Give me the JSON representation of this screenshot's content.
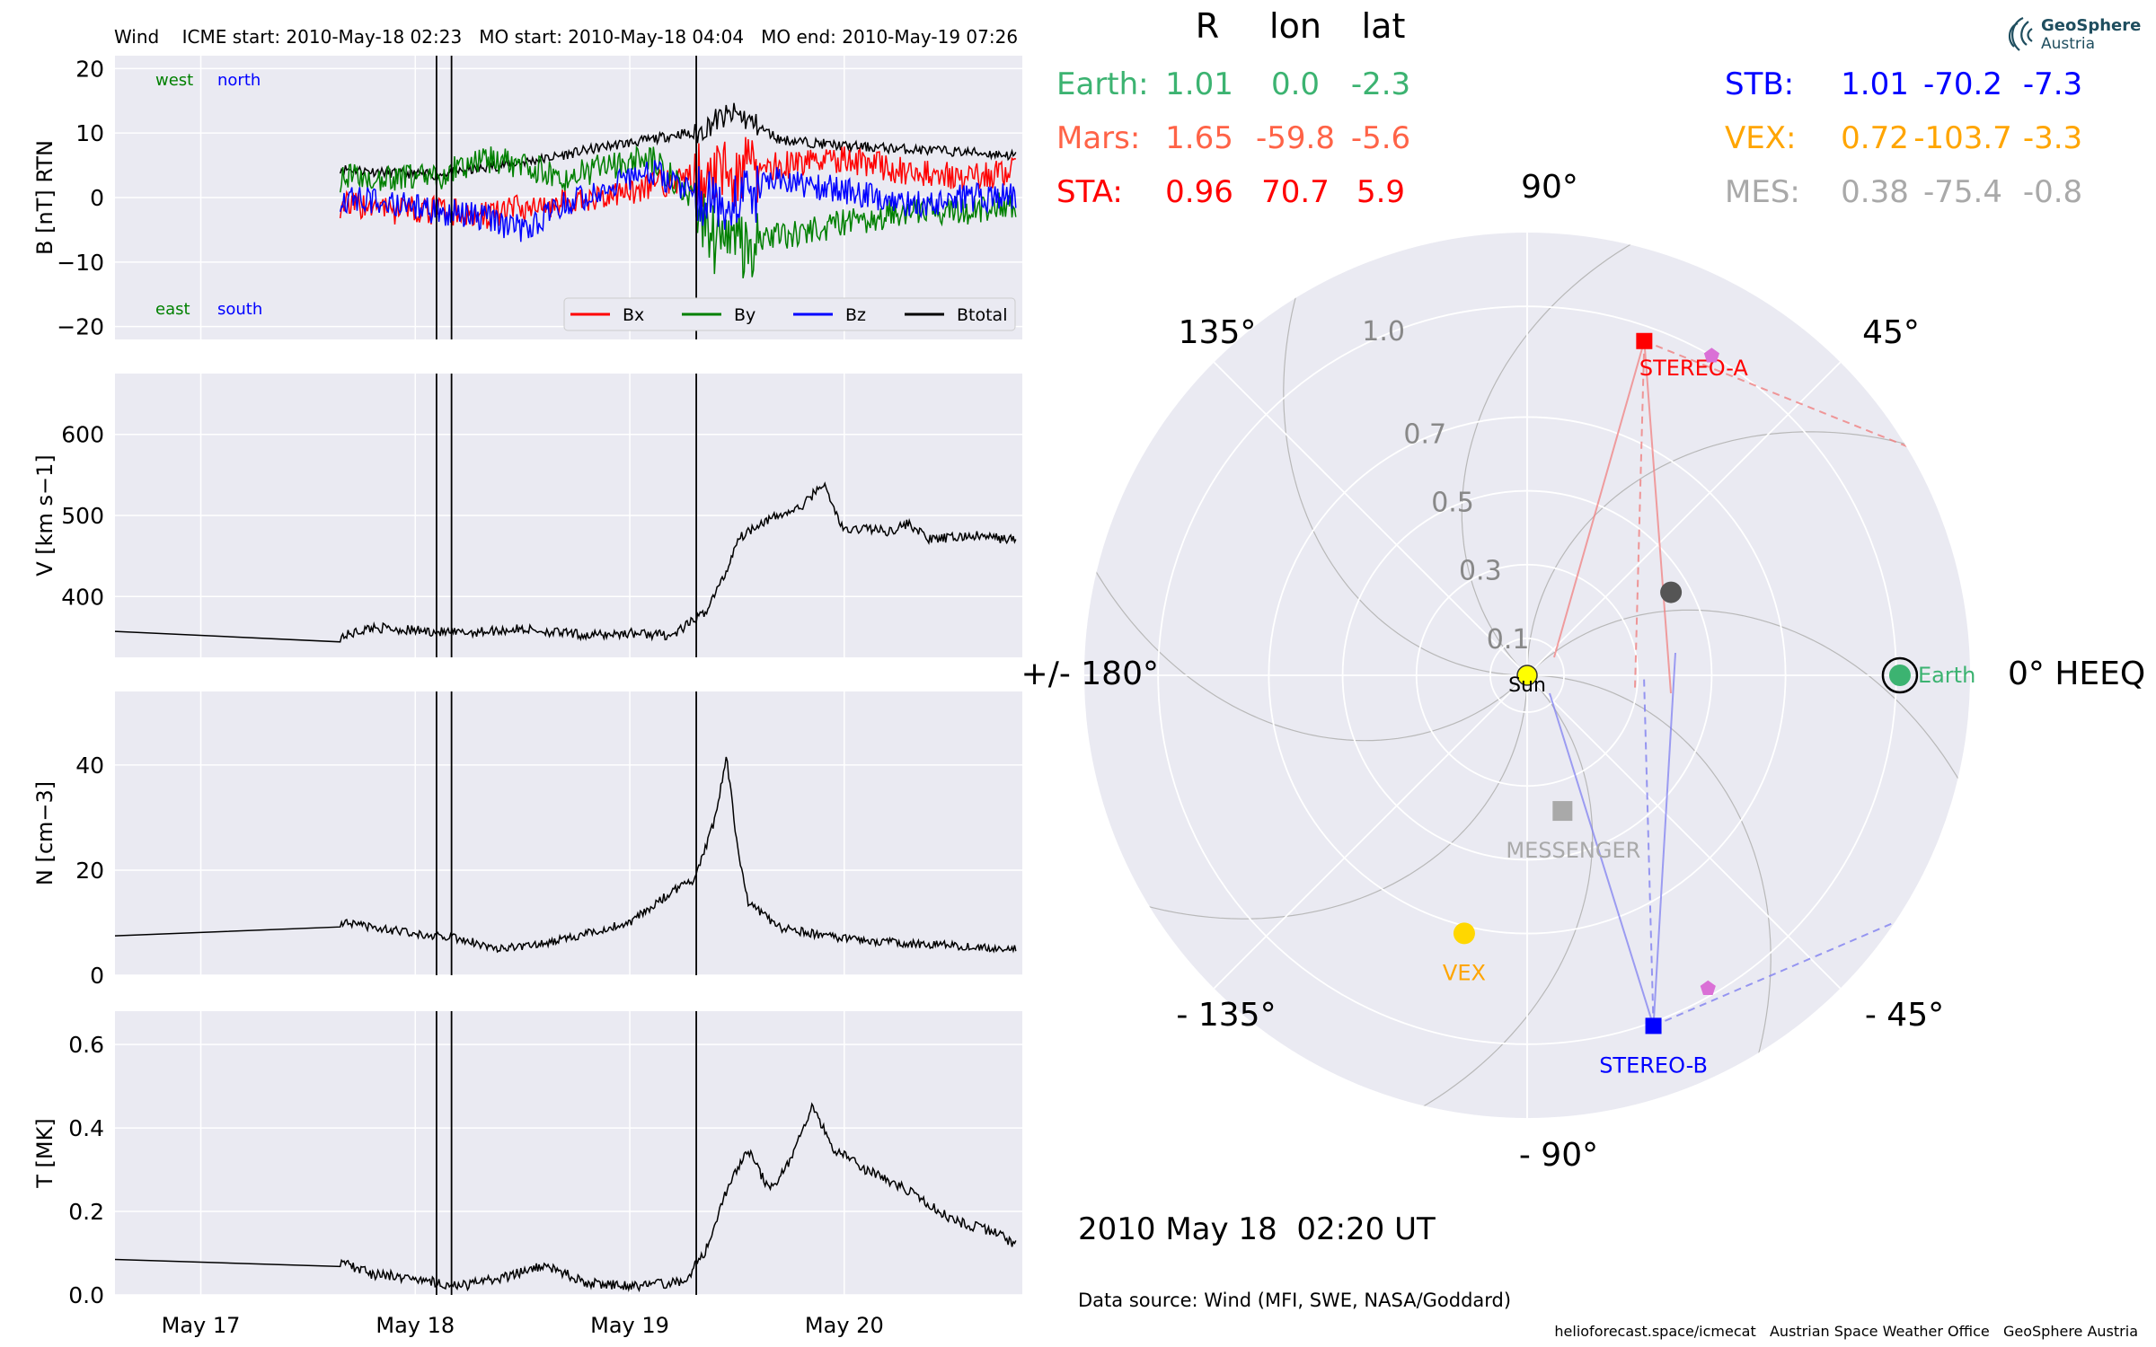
{
  "header": {
    "title": "Wind    ICME start: 2010-May-18 02:23   MO start: 2010-May-18 04:04   MO end: 2010-May-19 07:26"
  },
  "logo": {
    "line1": "GeoSphere",
    "line2": "Austria"
  },
  "footer": {
    "timestamp": "2010 May 18  02:20 UT",
    "data_source": "Data source: Wind (MFI, SWE, NASA/Goddard)",
    "credits": "helioforecast.space/icmecat   Austrian Space Weather Office   GeoSphere Austria"
  },
  "colors": {
    "panel_bg": "#eaeaf2",
    "grid": "#ffffff",
    "Bx": "#ff0000",
    "By": "#008000",
    "Bz": "#0000ff",
    "Btotal": "#000000",
    "earth": "#3cb371",
    "mars": "#ff6347",
    "sta": "#ff0000",
    "stb": "#0000ff",
    "vex": "#ffa500",
    "mes": "#a9a9a9",
    "sun": "#ffff00"
  },
  "chart_data": [
    {
      "type": "line",
      "title": "",
      "ylabel": "B [nT] RTN",
      "ylim": [
        -22,
        22
      ],
      "yticks": [
        -20,
        -10,
        0,
        10,
        20
      ],
      "ytick_labels": [
        "−20",
        "−10",
        "0",
        "10",
        "20"
      ],
      "xlim_days": [
        16.6,
        20.83
      ],
      "xticks": [
        17,
        18,
        19,
        20
      ],
      "xtick_labels": [
        "May 17",
        "May 18",
        "May 19",
        "May 20"
      ],
      "annotations": [
        "west",
        "north",
        "east",
        "south"
      ],
      "legend": [
        "Bx",
        "By",
        "Bz",
        "Btotal"
      ],
      "legend_position": "lower-right",
      "event_lines_days": [
        18.099,
        18.169,
        19.31
      ],
      "series": [
        {
          "name": "Btotal",
          "x": [
            17.65,
            17.9,
            18.1,
            18.3,
            18.6,
            18.9,
            19.1,
            19.25,
            19.3,
            19.4,
            19.5,
            19.7,
            20.0,
            20.3,
            20.6,
            20.8
          ],
          "y": [
            4.5,
            3.8,
            3.5,
            4.5,
            6.0,
            8.0,
            9.0,
            10.0,
            9.5,
            12.0,
            13.0,
            9.0,
            8.0,
            7.5,
            7.0,
            6.5
          ]
        },
        {
          "name": "Bx",
          "x": [
            17.65,
            17.9,
            18.1,
            18.3,
            18.6,
            18.9,
            19.1,
            19.3,
            19.5,
            19.7,
            20.0,
            20.3,
            20.6,
            20.8
          ],
          "y": [
            -1,
            -2,
            -2,
            -3,
            -1,
            0,
            2,
            3,
            4,
            5,
            6,
            4,
            3,
            4
          ]
        },
        {
          "name": "By",
          "x": [
            17.65,
            17.9,
            18.1,
            18.3,
            18.5,
            18.7,
            18.9,
            19.1,
            19.3,
            19.4,
            19.5,
            19.7,
            20.0,
            20.3,
            20.6,
            20.8
          ],
          "y": [
            3,
            3,
            3,
            6,
            5,
            3,
            5,
            6,
            0,
            -7,
            -8,
            -6,
            -4,
            -2,
            -2,
            -1
          ]
        },
        {
          "name": "Bz",
          "x": [
            17.65,
            17.9,
            18.1,
            18.3,
            18.5,
            18.7,
            18.9,
            19.1,
            19.3,
            19.5,
            19.7,
            20.0,
            20.3,
            20.6,
            20.8
          ],
          "y": [
            0,
            -1,
            -2,
            -3,
            -5,
            -1,
            2,
            4,
            1,
            0,
            3,
            1,
            -1,
            0,
            0
          ]
        }
      ]
    },
    {
      "type": "line",
      "ylabel": "V [km s−1]",
      "ylim": [
        325,
        675
      ],
      "yticks": [
        400,
        500,
        600
      ],
      "ytick_labels": [
        "400",
        "500",
        "600"
      ],
      "xlim_days": [
        16.6,
        20.83
      ],
      "event_lines_days": [
        18.099,
        18.169,
        19.31
      ],
      "series": [
        {
          "name": "V",
          "x": [
            16.6,
            17.65,
            17.8,
            18.0,
            18.2,
            18.5,
            18.8,
            19.0,
            19.2,
            19.35,
            19.45,
            19.5,
            19.6,
            19.8,
            19.9,
            20.0,
            20.1,
            20.2,
            20.3,
            20.4,
            20.6,
            20.8
          ],
          "y": [
            357,
            350,
            362,
            358,
            355,
            360,
            352,
            355,
            352,
            380,
            430,
            470,
            490,
            510,
            540,
            480,
            485,
            480,
            490,
            470,
            475,
            470
          ]
        }
      ]
    },
    {
      "type": "line",
      "ylabel": "N [cm−3]",
      "ylim": [
        0,
        54
      ],
      "yticks": [
        0,
        20,
        40
      ],
      "ytick_labels": [
        "0",
        "20",
        "40"
      ],
      "xlim_days": [
        16.6,
        20.83
      ],
      "event_lines_days": [
        18.099,
        18.169,
        19.31
      ],
      "series": [
        {
          "name": "N",
          "x": [
            16.6,
            17.65,
            17.8,
            18.0,
            18.2,
            18.4,
            18.6,
            18.8,
            19.0,
            19.2,
            19.3,
            19.4,
            19.45,
            19.5,
            19.55,
            19.7,
            20.0,
            20.3,
            20.6,
            20.8
          ],
          "y": [
            7.5,
            10,
            9,
            8,
            7,
            5,
            6,
            8,
            10,
            16,
            18,
            30,
            42,
            25,
            14,
            9,
            7,
            6,
            5.5,
            5
          ]
        }
      ]
    },
    {
      "type": "line",
      "ylabel": "T [MK]",
      "ylim": [
        0,
        0.68
      ],
      "yticks": [
        0.0,
        0.2,
        0.4,
        0.6
      ],
      "ytick_labels": [
        "0.0",
        "0.2",
        "0.4",
        "0.6"
      ],
      "xlim_days": [
        16.6,
        20.83
      ],
      "xticks": [
        17,
        18,
        19,
        20
      ],
      "xtick_labels": [
        "May 17",
        "May 18",
        "May 19",
        "May 20"
      ],
      "event_lines_days": [
        18.099,
        18.169,
        19.31
      ],
      "series": [
        {
          "name": "T",
          "x": [
            16.6,
            17.65,
            17.8,
            18.0,
            18.2,
            18.4,
            18.6,
            18.8,
            19.0,
            19.25,
            19.35,
            19.45,
            19.55,
            19.65,
            19.75,
            19.85,
            19.95,
            20.1,
            20.3,
            20.5,
            20.7,
            20.8
          ],
          "y": [
            0.085,
            0.08,
            0.05,
            0.04,
            0.02,
            0.04,
            0.07,
            0.03,
            0.02,
            0.03,
            0.1,
            0.25,
            0.35,
            0.25,
            0.32,
            0.45,
            0.35,
            0.3,
            0.25,
            0.18,
            0.15,
            0.12
          ]
        }
      ]
    },
    {
      "type": "scatter",
      "projection": "polar",
      "rticks": [
        0.1,
        0.3,
        0.5,
        0.7,
        1.0
      ],
      "rtick_labels": [
        "0.1",
        "0.3",
        "0.5",
        "0.7",
        "1.0"
      ],
      "rmax": 1.2,
      "angle_labels": [
        "0° HEEQ",
        "45°",
        "90°",
        "135°",
        "+/- 180°",
        "- 135°",
        "- 90°",
        "- 45°"
      ],
      "table_headers": [
        "R",
        "lon",
        "lat"
      ],
      "table": [
        {
          "label": "Earth:",
          "R": "1.01",
          "lon": "0.0",
          "lat": "-2.3",
          "color": "#3cb371"
        },
        {
          "label": "Mars:",
          "R": "1.65",
          "lon": "-59.8",
          "lat": "-5.6",
          "color": "#ff6347"
        },
        {
          "label": "STA:",
          "R": "0.96",
          "lon": "70.7",
          "lat": "5.9",
          "color": "#ff0000"
        },
        {
          "label": "STB:",
          "R": "1.01",
          "lon": "-70.2",
          "lat": "-7.3",
          "color": "#0000ff"
        },
        {
          "label": "VEX:",
          "R": "0.72",
          "lon": "-103.7",
          "lat": "-3.3",
          "color": "#ffa500"
        },
        {
          "label": "MES:",
          "R": "0.38",
          "lon": "-75.4",
          "lat": "-0.8",
          "color": "#a9a9a9"
        }
      ],
      "bodies": [
        {
          "name": "Sun",
          "label": "Sun",
          "r": 0,
          "lon": 0,
          "color": "#ffff00",
          "marker": "circle"
        },
        {
          "name": "Earth",
          "label": "Earth",
          "r": 1.01,
          "lon": 0.0,
          "color": "#3cb371",
          "marker": "circle"
        },
        {
          "name": "STEREO-A",
          "label": "STEREO-A",
          "r": 0.96,
          "lon": 70.7,
          "color": "#ff0000",
          "marker": "square"
        },
        {
          "name": "STEREO-B",
          "label": "STEREO-B",
          "r": 1.01,
          "lon": -70.2,
          "color": "#0000ff",
          "marker": "square"
        },
        {
          "name": "VEX",
          "label": "VEX",
          "r": 0.72,
          "lon": -103.7,
          "color": "#ffd700",
          "marker": "circle"
        },
        {
          "name": "MESSENGER",
          "label": "MESSENGER",
          "r": 0.38,
          "lon": -75.4,
          "color": "#a9a9a9",
          "marker": "square"
        },
        {
          "name": "gray-body",
          "label": "",
          "r": 0.45,
          "lon": 30,
          "color": "#555555",
          "marker": "circle"
        },
        {
          "name": "sta-l5",
          "label": "",
          "r": 1.0,
          "lon": 60,
          "color": "#da70d6",
          "marker": "pentagon"
        },
        {
          "name": "stb-l4",
          "label": "",
          "r": 0.98,
          "lon": -60,
          "color": "#da70d6",
          "marker": "pentagon"
        }
      ]
    }
  ]
}
